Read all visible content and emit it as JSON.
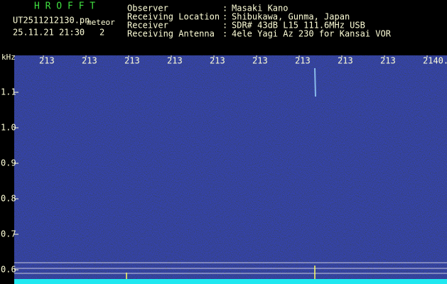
{
  "header": {
    "title": "H R O F F T",
    "file": "UT2511212130.pn",
    "tag": "meteor",
    "datetime": "25.11.21 21:30",
    "count": "2",
    "separator": ":",
    "info": [
      {
        "label": "Observer",
        "value": "Masaki Kano"
      },
      {
        "label": "Receiving Location",
        "value": "Shibukawa, Gunma, Japan"
      },
      {
        "label": "Receiver",
        "value": "SDR# 43dB L15 111.6MHz USB"
      },
      {
        "label": "Receiving Antenna",
        "value": "4ele Yagi Az 230 for Kansai VOR"
      }
    ]
  },
  "axis": {
    "unit": "kHz",
    "y_labels": [
      "1.1",
      "1.0",
      "0.9",
      "0.8",
      "0.7",
      "0.6"
    ],
    "x_labels": [
      "213",
      "213",
      "213",
      "213",
      "213",
      "213",
      "213",
      "213",
      "213",
      "2140."
    ]
  }
}
